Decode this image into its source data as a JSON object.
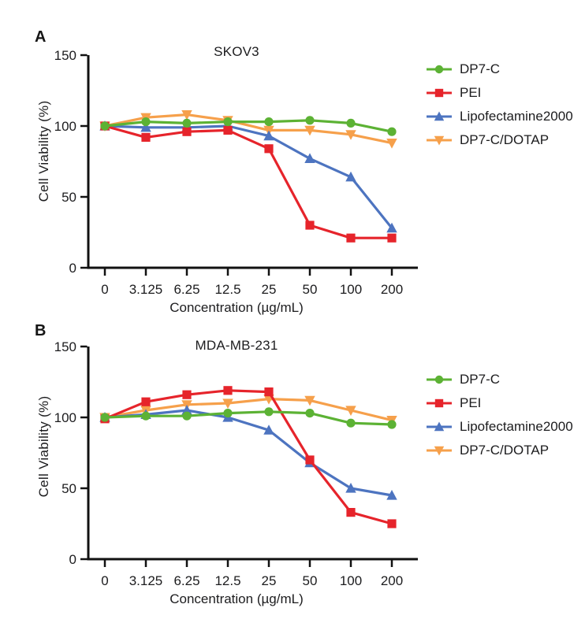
{
  "figure": {
    "panels": [
      {
        "label": "A"
      },
      {
        "label": "B"
      }
    ]
  },
  "chart_data": [
    {
      "type": "line",
      "title": "SKOV3",
      "xlabel": "Concentration (µg/mL)",
      "ylabel": "Cell Viability (%)",
      "categories": [
        "0",
        "3.125",
        "6.25",
        "12.5",
        "25",
        "50",
        "100",
        "200"
      ],
      "y_ticks": [
        0,
        50,
        100,
        150
      ],
      "ylim": [
        0,
        150
      ],
      "grid": false,
      "legend_position": "right",
      "series": [
        {
          "name": "DP7-C",
          "color": "#5cb234",
          "marker": "circle",
          "values": [
            100,
            103,
            102,
            103,
            103,
            104,
            102,
            96
          ]
        },
        {
          "name": "PEI",
          "color": "#e6242b",
          "marker": "square",
          "values": [
            100,
            92,
            96,
            97,
            84,
            30,
            21,
            21
          ]
        },
        {
          "name": "Lipofectamine2000",
          "color": "#4d74c0",
          "marker": "triangle-up",
          "values": [
            100,
            99,
            99,
            100,
            93,
            77,
            64,
            28
          ]
        },
        {
          "name": "DP7-C/DOTAP",
          "color": "#f6a04b",
          "marker": "triangle-down",
          "values": [
            100,
            106,
            108,
            104,
            97,
            97,
            94,
            88
          ]
        }
      ]
    },
    {
      "type": "line",
      "title": "MDA-MB-231",
      "xlabel": "Concentration (µg/mL)",
      "ylabel": "Cell Viability (%)",
      "categories": [
        "0",
        "3.125",
        "6.25",
        "12.5",
        "25",
        "50",
        "100",
        "200"
      ],
      "y_ticks": [
        0,
        50,
        100,
        150
      ],
      "ylim": [
        0,
        150
      ],
      "grid": false,
      "legend_position": "right",
      "series": [
        {
          "name": "DP7-C",
          "color": "#5cb234",
          "marker": "circle",
          "values": [
            100,
            101,
            101,
            103,
            104,
            103,
            96,
            95
          ]
        },
        {
          "name": "PEI",
          "color": "#e6242b",
          "marker": "square",
          "values": [
            99,
            111,
            116,
            119,
            118,
            70,
            33,
            25
          ]
        },
        {
          "name": "Lipofectamine2000",
          "color": "#4d74c0",
          "marker": "triangle-up",
          "values": [
            100,
            102,
            105,
            100,
            91,
            68,
            50,
            45
          ]
        },
        {
          "name": "DP7-C/DOTAP",
          "color": "#f6a04b",
          "marker": "triangle-down",
          "values": [
            100,
            105,
            109,
            110,
            113,
            112,
            105,
            98
          ]
        }
      ]
    }
  ]
}
